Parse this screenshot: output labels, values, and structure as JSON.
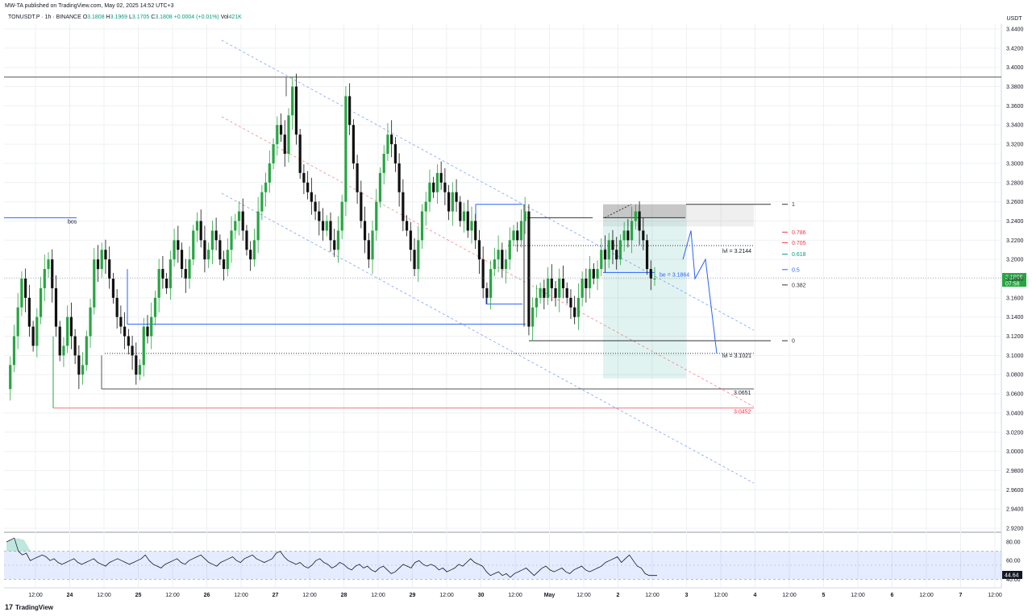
{
  "header": {
    "published": "MW-TA published on TradingView.com, May 02, 2025 14:52 UTC+3"
  },
  "legend": {
    "symbol": "TONUSDT.P · 1h · BINANCE",
    "open_label": "O",
    "open": "3.1808",
    "high_label": "H",
    "high": "3.1969",
    "low_label": "L",
    "low": "3.1705",
    "close_label": "C",
    "close": "3.1808",
    "change": "+0.0004 (+0.01%)",
    "vol_label": "Vol",
    "vol": "421K"
  },
  "footer": {
    "brand": "TradingView",
    "logo_glyph": "17"
  },
  "colors": {
    "up": "#26a641",
    "down": "#111111",
    "blue": "#2962ff",
    "red": "#f23645",
    "teal": "#089981",
    "grid": "#eef0f3"
  },
  "chart_data": [
    {
      "type": "candlestick",
      "currency_label": "USDT",
      "ylim": [
        2.91,
        3.45
      ],
      "y_ticks": [
        "3.4400",
        "3.4200",
        "3.4000",
        "3.3800",
        "3.3600",
        "3.3400",
        "3.3200",
        "3.3000",
        "3.2800",
        "3.2600",
        "3.2400",
        "3.2200",
        "3.2000",
        "3.1800",
        "3.1600",
        "3.1400",
        "3.1200",
        "3.1000",
        "3.0800",
        "3.0600",
        "3.0400",
        "3.0200",
        "3.0000",
        "2.9800",
        "2.9600",
        "2.9400",
        "2.9200"
      ],
      "x_ticks": [
        "12:00",
        "24",
        "12:00",
        "25",
        "12:00",
        "26",
        "12:00",
        "27",
        "12:00",
        "28",
        "12:00",
        "29",
        "12:00",
        "30",
        "12:00",
        "May",
        "12:00",
        "2",
        "12:00",
        "3",
        "12:00",
        "4",
        "12:00",
        "5",
        "12:00",
        "6",
        "12:00",
        "7",
        "12:00"
      ],
      "last_price": "3.1808",
      "countdown": "07:58",
      "price_path": [
        3.065,
        3.09,
        3.12,
        3.15,
        3.18,
        3.16,
        3.13,
        3.11,
        3.14,
        3.17,
        3.19,
        3.2,
        3.17,
        3.13,
        3.1,
        3.11,
        3.14,
        3.12,
        3.1,
        3.08,
        3.09,
        3.12,
        3.15,
        3.2,
        3.19,
        3.21,
        3.2,
        3.18,
        3.16,
        3.14,
        3.13,
        3.12,
        3.11,
        3.1,
        3.08,
        3.09,
        3.13,
        3.12,
        3.14,
        3.16,
        3.19,
        3.18,
        3.17,
        3.2,
        3.22,
        3.21,
        3.19,
        3.18,
        3.2,
        3.23,
        3.24,
        3.22,
        3.2,
        3.21,
        3.23,
        3.22,
        3.2,
        3.19,
        3.21,
        3.23,
        3.24,
        3.25,
        3.23,
        3.21,
        3.2,
        3.22,
        3.25,
        3.27,
        3.28,
        3.3,
        3.32,
        3.34,
        3.33,
        3.31,
        3.35,
        3.38,
        3.33,
        3.29,
        3.28,
        3.27,
        3.26,
        3.25,
        3.24,
        3.23,
        3.24,
        3.22,
        3.21,
        3.23,
        3.26,
        3.37,
        3.34,
        3.3,
        3.27,
        3.24,
        3.22,
        3.2,
        3.23,
        3.26,
        3.29,
        3.31,
        3.33,
        3.32,
        3.3,
        3.27,
        3.24,
        3.23,
        3.21,
        3.19,
        3.22,
        3.25,
        3.26,
        3.28,
        3.27,
        3.29,
        3.28,
        3.27,
        3.25,
        3.27,
        3.26,
        3.24,
        3.25,
        3.23,
        3.24,
        3.22,
        3.2,
        3.17,
        3.16,
        3.19,
        3.2,
        3.21,
        3.19,
        3.2,
        3.22,
        3.23,
        3.22,
        3.24,
        3.25,
        3.13,
        3.15,
        3.16,
        3.17,
        3.16,
        3.18,
        3.17,
        3.16,
        3.18,
        3.17,
        3.16,
        3.15,
        3.14,
        3.16,
        3.18,
        3.17,
        3.19,
        3.18,
        3.19,
        3.21,
        3.2,
        3.22,
        3.21,
        3.2,
        3.22,
        3.23,
        3.22,
        3.24,
        3.25,
        3.23,
        3.22,
        3.19,
        3.18,
        3.18
      ],
      "horizontal_levels": [
        {
          "price": 3.3899,
          "label": ""
        },
        {
          "price": 3.2144,
          "label": "lvl = 3.2144"
        },
        {
          "price": 3.1864,
          "label": "be = 3.1864"
        },
        {
          "price": 3.1021,
          "label": "lvl = 3.1021"
        },
        {
          "price": 3.0651,
          "label": "3.0651"
        },
        {
          "price": 3.0452,
          "label": "3.0452"
        },
        {
          "price": 3.2434,
          "label": "bos"
        }
      ],
      "fib_levels": [
        {
          "level": "1",
          "price": 3.2574
        },
        {
          "level": "0.786",
          "price": 3.2284
        },
        {
          "level": "0.705",
          "price": 3.2174
        },
        {
          "level": "0.618",
          "price": 3.2054
        },
        {
          "level": "0.5",
          "price": 3.1894
        },
        {
          "level": "0.382",
          "price": 3.1734
        },
        {
          "level": "0",
          "price": 3.1153
        }
      ]
    },
    {
      "type": "line",
      "name": "RSI",
      "y_ticks": [
        "80.00",
        "60.00",
        "40.00"
      ],
      "last_value": "44.64",
      "band": [
        40,
        70
      ],
      "values": [
        80,
        82,
        84,
        70,
        66,
        68,
        60,
        62,
        64,
        66,
        64,
        60,
        62,
        58,
        56,
        58,
        60,
        62,
        58,
        56,
        58,
        60,
        62,
        58,
        56,
        54,
        58,
        60,
        62,
        60,
        58,
        56,
        58,
        60,
        62,
        66,
        60,
        56,
        54,
        52,
        56,
        58,
        60,
        62,
        58,
        56,
        60,
        62,
        64,
        66,
        62,
        58,
        56,
        54,
        58,
        60,
        62,
        64,
        60,
        58,
        62,
        64,
        66,
        62,
        60,
        58,
        60,
        62,
        68,
        70,
        64,
        60,
        58,
        56,
        58,
        54,
        52,
        55,
        60,
        62,
        58,
        56,
        52,
        54,
        58,
        56,
        52,
        50,
        54,
        56,
        52,
        54,
        50,
        48,
        52,
        54,
        50,
        46,
        48,
        52,
        56,
        54,
        52,
        58,
        60,
        56,
        54,
        56,
        54,
        50,
        52,
        48,
        50,
        52,
        56,
        54,
        58,
        62,
        58,
        56,
        54,
        48,
        44,
        46,
        48,
        44,
        46,
        42,
        46,
        48,
        50,
        52,
        48,
        44,
        48,
        52,
        54,
        50,
        48,
        50,
        52,
        48,
        46,
        50,
        52,
        54,
        50,
        48,
        50,
        52,
        54,
        58,
        60,
        62,
        64,
        58,
        62,
        66,
        60,
        54,
        52,
        46,
        44,
        44,
        44
      ]
    }
  ]
}
